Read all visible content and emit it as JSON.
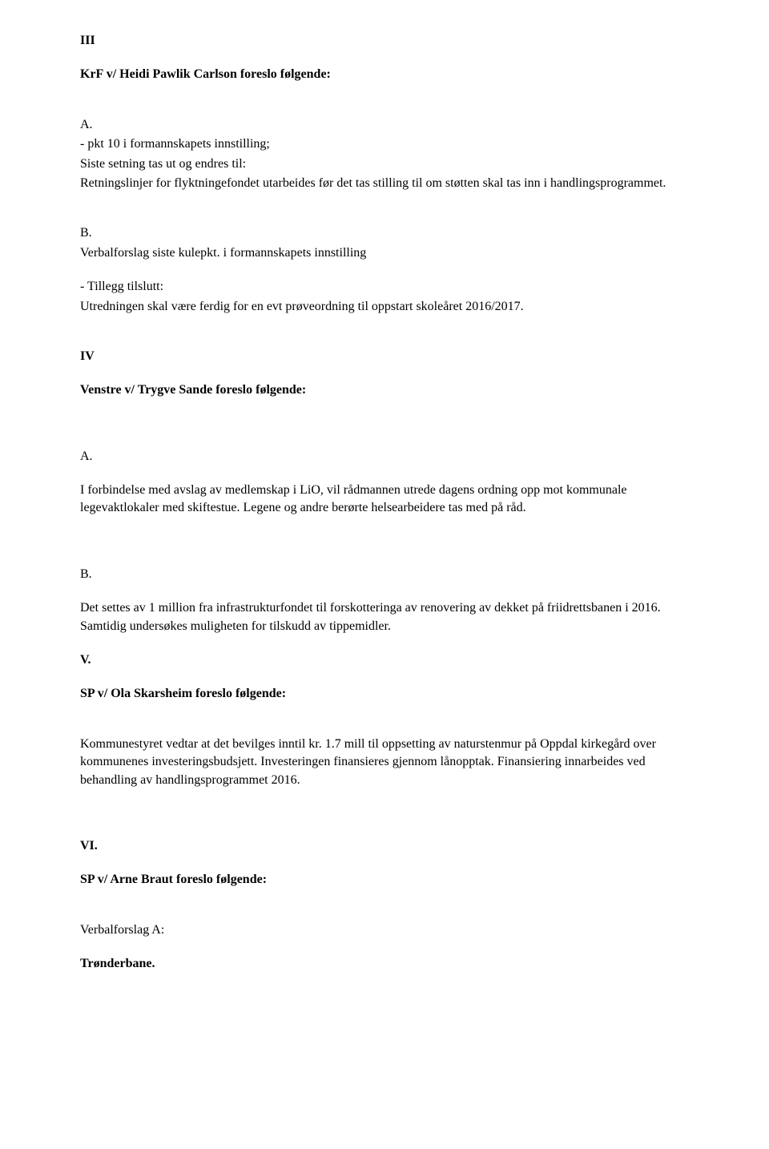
{
  "section3": {
    "heading": "III",
    "proposer": "KrF v/ Heidi Pawlik Carlson foreslo følgende:",
    "partA": {
      "label": "A.",
      "line1": "- pkt 10 i formannskapets innstilling;",
      "line2": "Siste setning tas ut og endres til:",
      "line3": "Retningslinjer for flyktningefondet utarbeides før det tas stilling til om støtten skal tas inn i handlingsprogrammet."
    },
    "partB": {
      "label": "B.",
      "line1": "Verbalforslag siste kulepkt. i formannskapets innstilling",
      "line2": "- Tillegg tilslutt:",
      "line3": "Utredningen skal være ferdig for en evt prøveordning til oppstart skoleåret 2016/2017."
    }
  },
  "section4": {
    "heading": "IV",
    "proposer": "Venstre v/ Trygve Sande foreslo følgende:",
    "partA": {
      "label": "A.",
      "text": "I forbindelse med avslag av medlemskap i LiO, vil rådmannen utrede dagens ordning opp mot kommunale legevaktlokaler med skiftestue. Legene og andre berørte helsearbeidere tas med på råd."
    },
    "partB": {
      "label": "B.",
      "text": "Det settes av 1 million fra infrastrukturfondet til forskotteringa av renovering av dekket på friidrettsbanen i 2016. Samtidig undersøkes muligheten for tilskudd av tippemidler."
    }
  },
  "section5": {
    "heading": "V.",
    "proposer": "SP v/ Ola Skarsheim foreslo følgende:",
    "text": "Kommunestyret vedtar at det bevilges inntil kr. 1.7 mill til oppsetting av naturstenmur på Oppdal kirkegård over kommunenes investeringsbudsjett.  Investeringen finansieres gjennom lånopptak. Finansiering innarbeides  ved behandling av handlingsprogrammet 2016."
  },
  "section6": {
    "heading": "VI.",
    "proposer": "SP v/ Arne Braut foreslo følgende:",
    "line1": "Verbalforslag A:",
    "line2": "Trønderbane."
  }
}
